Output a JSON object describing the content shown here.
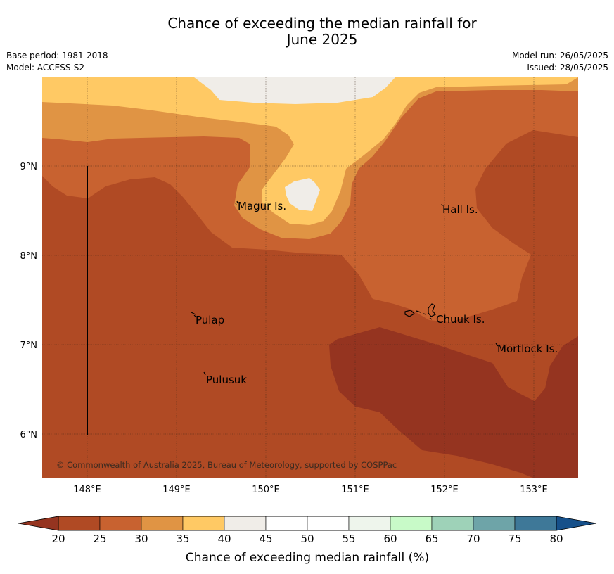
{
  "title_line1": "Chance of exceeding the median rainfall for",
  "title_line2": "June 2025",
  "base_period": "Base period: 1981-2018",
  "model": "Model: ACCESS-S2",
  "model_run": "Model run: 26/05/2025",
  "issued": "Issued: 28/05/2025",
  "copyright": "© Commonwealth of Australia 2025, Bureau of Meteorology, supported by COSPPac",
  "map": {
    "lat_ticks": [
      "9°N",
      "8°N",
      "7°N",
      "6°N"
    ],
    "lon_ticks": [
      "148°E",
      "149°E",
      "150°E",
      "151°E",
      "152°E",
      "153°E"
    ],
    "places": [
      {
        "name": "Magur Is."
      },
      {
        "name": "Hall Is."
      },
      {
        "name": "Pulap"
      },
      {
        "name": "Chuuk Is."
      },
      {
        "name": "Mortlock Is."
      },
      {
        "name": "Pulusuk"
      }
    ],
    "colors": {
      "c20_25": "#953420",
      "c25_30": "#b04a24",
      "c30_35": "#c86230",
      "c35_40": "#e09444",
      "c40_45": "#ffc964",
      "c45_50": "#f0ede8"
    }
  },
  "colorbar": {
    "label": "Chance of exceeding median rainfall (%)",
    "ticks": [
      "20",
      "25",
      "30",
      "35",
      "40",
      "45",
      "50",
      "55",
      "60",
      "65",
      "70",
      "75",
      "80"
    ],
    "low_extend_color": "#953420",
    "high_extend_color": "#16508a",
    "colors": [
      "#b04a24",
      "#c86230",
      "#e09444",
      "#ffc964",
      "#f0ede8",
      "#ffffff",
      "#ffffff",
      "#eef5ec",
      "#c8fac8",
      "#9ed2b8",
      "#6ea4a8",
      "#3e7898"
    ]
  }
}
